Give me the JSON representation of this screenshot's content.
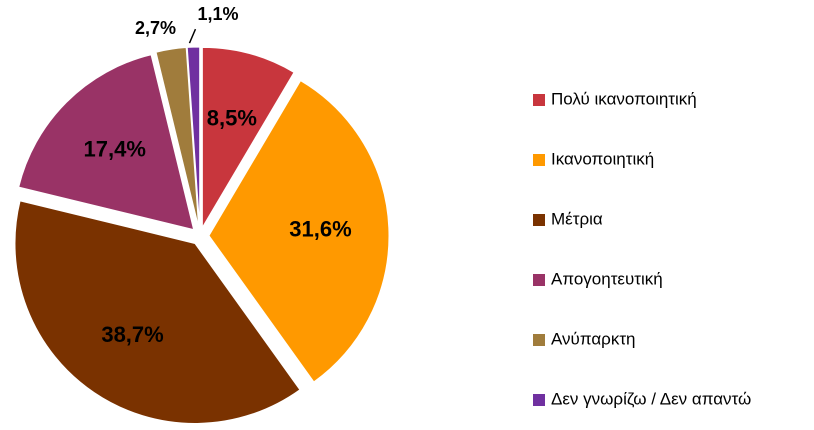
{
  "chart_data": {
    "type": "pie",
    "categories": [
      "Πολύ ικανοποιητική",
      "Ικανοποιητική",
      "Μέτρια",
      "Απογοητευτική",
      "Ανύπαρκτη",
      "Δεν γνωρίζω / Δεν απαντώ"
    ],
    "values": [
      8.5,
      31.6,
      38.7,
      17.4,
      2.7,
      1.1
    ],
    "value_labels": [
      "8,5%",
      "31,6%",
      "38,7%",
      "17,4%",
      "2,7%",
      "1,1%"
    ],
    "colors": [
      "#c8363d",
      "#ff9900",
      "#7a3200",
      "#993366",
      "#a07c3c",
      "#7030a0"
    ],
    "legend": "right"
  }
}
